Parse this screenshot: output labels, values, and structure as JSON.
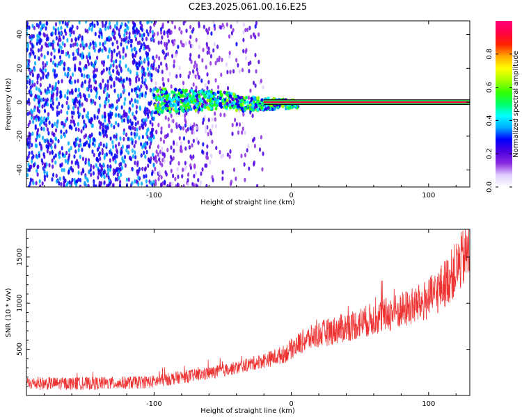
{
  "figure": {
    "title": "C2E3.2025.061.00.16.E25"
  },
  "chart_data": [
    {
      "type": "heatmap",
      "xlabel": "Height of straight line (km)",
      "ylabel": "Frequency (Hz)",
      "xlim": [
        -193,
        130
      ],
      "ylim": [
        -50,
        48
      ],
      "xticks": [
        -100,
        0,
        100
      ],
      "yticks": [
        -40,
        -20,
        0,
        20,
        40
      ],
      "colorbar": {
        "label": "Normalized spectral amplitude",
        "range": [
          0,
          1
        ],
        "ticks": [
          0.0,
          0.2,
          0.4,
          0.6,
          0.8
        ],
        "colors": [
          "#ffffff",
          "#e0ccff",
          "#8a2be2",
          "#4b00e0",
          "#0000ff",
          "#00aaff",
          "#00ffff",
          "#00ff66",
          "#33ff00",
          "#aaff00",
          "#ffff00",
          "#ffaa00",
          "#ff2200",
          "#ff0044",
          "#ff0077"
        ]
      },
      "features": {
        "noise_region_x": [
          -193,
          -30
        ],
        "signal_line_x": [
          -100,
          130
        ],
        "signal_line_freq": 0,
        "signal_line_amplitude": 0.9
      }
    },
    {
      "type": "line",
      "xlabel": "Height of straight line (km)",
      "ylabel": "SNR (10 * v/v)",
      "xlim": [
        -193,
        130
      ],
      "ylim": [
        0,
        1800
      ],
      "xticks": [
        -100,
        0,
        100
      ],
      "yticks": [
        500,
        1000,
        1500
      ],
      "series": [
        {
          "color": "#ee3333",
          "x": [
            -193,
            -175,
            -150,
            -125,
            -100,
            -80,
            -60,
            -40,
            -25,
            -15,
            -5,
            5,
            10,
            20,
            40,
            60,
            80,
            95,
            105,
            115,
            125,
            130
          ],
          "y": [
            130,
            130,
            130,
            135,
            150,
            200,
            240,
            300,
            360,
            400,
            450,
            560,
            600,
            660,
            740,
            830,
            920,
            1000,
            1100,
            1270,
            1480,
            1560
          ]
        }
      ]
    }
  ]
}
